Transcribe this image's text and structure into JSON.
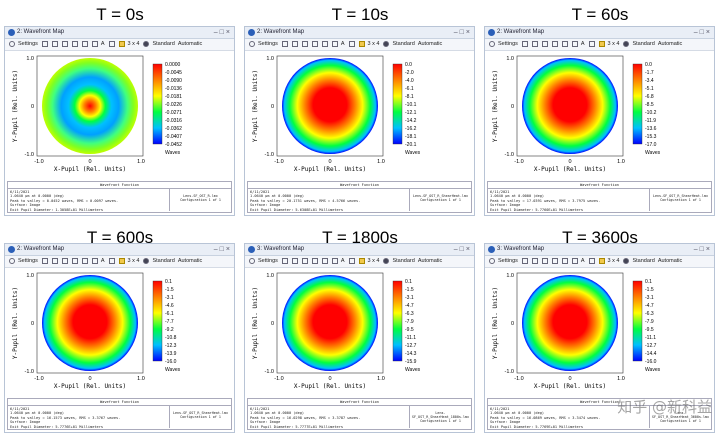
{
  "panels": [
    {
      "heading": "T = 0s",
      "window_title": "2: Wavefront Map",
      "colorbar_ticks": [
        "0.0000",
        "-0.0045",
        "-0.0090",
        "-0.0136",
        "-0.0181",
        "-0.0226",
        "-0.0271",
        "-0.0316",
        "-0.0362",
        "-0.0407",
        "-0.0452"
      ],
      "colorbar_unit": "Waves",
      "pattern": "rings",
      "info_lines": [
        "6/11/2021",
        "1.0640 µm at 0.0000 (deg)",
        "Peak to valley = 0.0452 waves, RMS = 0.0097 waves.",
        "Surface: Image",
        "Exit Pupil Diameter: 1.3058E+01 Millimeters"
      ],
      "info_side": [
        "Lens-SF_OST_R.lmx",
        "Configuration 1 of 1"
      ]
    },
    {
      "heading": "T = 10s",
      "window_title": "2: Wavefront Map",
      "colorbar_ticks": [
        "0.0",
        "-2.0",
        "-4.0",
        "-6.1",
        "-8.1",
        "-10.1",
        "-12.1",
        "-14.2",
        "-16.2",
        "-18.1",
        "-20.1"
      ],
      "colorbar_unit": "Waves",
      "pattern": "dome",
      "info_lines": [
        "6/11/2021",
        "1.0640 µm at 0.0000 (deg)",
        "Peak to valley = 20.1751 waves, RMS = 4.5766 waves.",
        "Surface: Image",
        "Exit Pupil Diameter: 5.6308E+01 Millimeters"
      ],
      "info_side": [
        "Lens-SF_OST_R_ShearHeat.lmx",
        "Configuration 1 of 1"
      ]
    },
    {
      "heading": "T = 60s",
      "window_title": "2: Wavefront Map",
      "colorbar_ticks": [
        "0.0",
        "-1.7",
        "-3.4",
        "-5.1",
        "-6.8",
        "-8.5",
        "-10.2",
        "-11.9",
        "-13.6",
        "-15.3",
        "-17.0"
      ],
      "colorbar_unit": "Waves",
      "pattern": "dome",
      "info_lines": [
        "6/11/2021",
        "1.0640 µm at 0.0000 (deg)",
        "Peak to valley = 17.0391 waves, RMS = 3.7975 waves.",
        "Surface: Image",
        "Exit Pupil Diameter: 5.7760E+01 Millimeters"
      ],
      "info_side": [
        "Lens-SF_OST_R_ShearHeat.lmx",
        "Configuration 1 of 1"
      ]
    },
    {
      "heading": "T = 600s",
      "window_title": "2: Wavefront Map",
      "colorbar_ticks": [
        "0.1",
        "-1.5",
        "-3.1",
        "-4.6",
        "-6.1",
        "-7.7",
        "-9.2",
        "-10.8",
        "-12.3",
        "-13.9",
        "-16.0"
      ],
      "colorbar_unit": "Waves",
      "pattern": "dome",
      "info_lines": [
        "6/11/2021",
        "1.0640 µm at 0.0000 (deg)",
        "Peak to valley = 16.1573 waves, RMS = 3.3767 waves.",
        "Surface: Image",
        "Exit Pupil Diameter: 5.7776E+01 Millimeters"
      ],
      "info_side": [
        "Lens-SF_OST_R_ShearHeat.lmx",
        "Configuration 1 of 1"
      ]
    },
    {
      "heading": "T = 1800s",
      "window_title": "3: Wavefront Map",
      "colorbar_ticks": [
        "0.1",
        "-1.5",
        "-3.1",
        "-4.7",
        "-6.3",
        "-7.9",
        "-9.5",
        "-11.1",
        "-12.7",
        "-14.3",
        "-15.9"
      ],
      "colorbar_unit": "Waves",
      "pattern": "dome",
      "info_lines": [
        "6/11/2021",
        "1.0640 µm at 0.0000 (deg)",
        "Peak to valley = 16.0298 waves, RMS = 3.3787 waves.",
        "Surface: Image",
        "Exit Pupil Diameter: 5.7777E+01 Millimeters"
      ],
      "info_side": [
        "Lens-SF_OST_R_ShearHeat_1800s.lmx",
        "Configuration 1 of 1"
      ]
    },
    {
      "heading": "T = 3600s",
      "window_title": "3: Wavefront Map",
      "colorbar_ticks": [
        "0.1",
        "-1.5",
        "-3.1",
        "-4.7",
        "-6.3",
        "-7.9",
        "-9.5",
        "-11.1",
        "-12.7",
        "-14.4",
        "-16.0"
      ],
      "colorbar_unit": "Waves",
      "pattern": "dome",
      "info_lines": [
        "6/11/2021",
        "1.0640 µm at 0.0000 (deg)",
        "Peak to valley = 16.0869 waves, RMS = 3.3474 waves.",
        "Surface: Image",
        "Exit Pupil Diameter: 5.7769E+01 Millimeters"
      ],
      "info_side": [
        "Lens-SF_OST_R_ShearHeat_3600s.lmx",
        "Configuration 1 of 1"
      ]
    }
  ],
  "toolbar": {
    "settings_label": "Settings",
    "layout_label": "3 x 4",
    "standard_label": "Standard",
    "automatic_label": "Automatic",
    "text_tool_label": "A"
  },
  "axes": {
    "x_label": "X-Pupil (Rel. Units)",
    "y_label": "Y-Pupil (Rel. Units)",
    "x_ticks": [
      "-1.0",
      "0",
      "1.0"
    ],
    "y_ticks": [
      "1.0",
      "0",
      "-1.0"
    ]
  },
  "info_header": "Wavefront Function",
  "watermark": "知乎 @新科益",
  "colors": {
    "titlebar_bg": "#e9eef6",
    "colormap": [
      "#ff0000",
      "#ff8000",
      "#ffff00",
      "#00ff40",
      "#00c0ff",
      "#0000ff"
    ]
  }
}
